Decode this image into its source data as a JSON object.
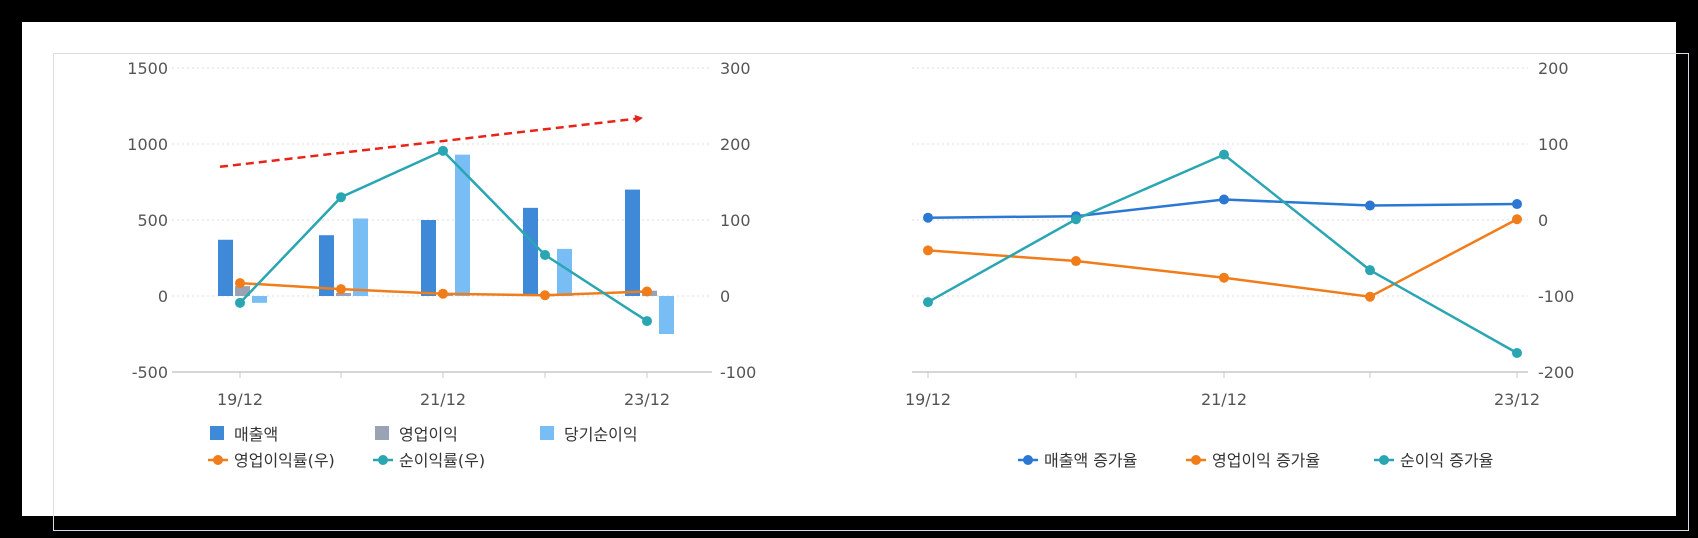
{
  "chart_data": [
    {
      "type": "bar",
      "categories": [
        "19/12",
        "",
        "21/12",
        "",
        "23/12"
      ],
      "y_left": {
        "ticks": [
          "1500",
          "1000",
          "500",
          "0",
          "-500"
        ],
        "range": [
          -500,
          1500
        ]
      },
      "y_right": {
        "ticks": [
          "300",
          "200",
          "100",
          "0",
          "-100"
        ],
        "range": [
          -100,
          300
        ]
      },
      "bar_series": [
        {
          "name": "매출액",
          "color": "#3f8ad8",
          "values": [
            370,
            400,
            500,
            580,
            700
          ]
        },
        {
          "name": "영업이익",
          "color": "#9aa3b4",
          "values": [
            65,
            20,
            10,
            5,
            35
          ]
        },
        {
          "name": "당기순이익",
          "color": "#79bdf5",
          "values": [
            -45,
            510,
            930,
            310,
            -250
          ]
        }
      ],
      "line_series": [
        {
          "name": "영업이익률(우)",
          "color": "#f07c1a",
          "values": [
            17,
            9,
            3,
            1,
            6
          ]
        },
        {
          "name": "순이익률(우)",
          "color": "#2aa6b3",
          "values": [
            -9,
            130,
            191,
            54,
            -33
          ]
        }
      ],
      "annotation": {
        "type": "trend-arrow",
        "color": "#e8231a",
        "from": [
          0,
          850
        ],
        "to": [
          4,
          1170
        ]
      }
    },
    {
      "type": "line",
      "categories": [
        "19/12",
        "",
        "21/12",
        "",
        "23/12"
      ],
      "y_right": {
        "ticks": [
          "200",
          "100",
          "0",
          "-100",
          "-200"
        ],
        "range": [
          -200,
          200
        ]
      },
      "series": [
        {
          "name": "매출액 증가율",
          "color": "#2a78d4",
          "values": [
            3,
            5,
            27,
            19,
            21
          ]
        },
        {
          "name": "영업이익 증가율",
          "color": "#f07c1a",
          "values": [
            -40,
            -54,
            -76,
            -101,
            1
          ]
        },
        {
          "name": "순이익 증가율",
          "color": "#2aa6b3",
          "values": [
            -108,
            1,
            86,
            -66,
            -175
          ]
        }
      ]
    }
  ]
}
